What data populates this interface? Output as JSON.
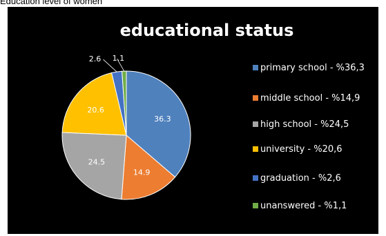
{
  "caption": "Education level of women",
  "chart_data": {
    "type": "pie",
    "title": "educational status",
    "slices": [
      {
        "label": "primary school - %36,3",
        "value": 36.3,
        "data_label": "36.3",
        "color": "#4f81bd"
      },
      {
        "label": "middle school - %14,9",
        "value": 14.9,
        "data_label": "14.9",
        "color": "#ec7d31"
      },
      {
        "label": "high school - %24,5",
        "value": 24.5,
        "data_label": "24.5",
        "color": "#a5a5a5"
      },
      {
        "label": "university - %20,6",
        "value": 20.6,
        "data_label": "20.6",
        "color": "#ffc000"
      },
      {
        "label": "graduation - %2,6",
        "value": 2.6,
        "data_label": "2.6",
        "color": "#4472c4"
      },
      {
        "label": "unanswered - %1,1",
        "value": 1.1,
        "data_label": "1.1",
        "color": "#70ad47"
      }
    ],
    "legend_position": "right"
  }
}
